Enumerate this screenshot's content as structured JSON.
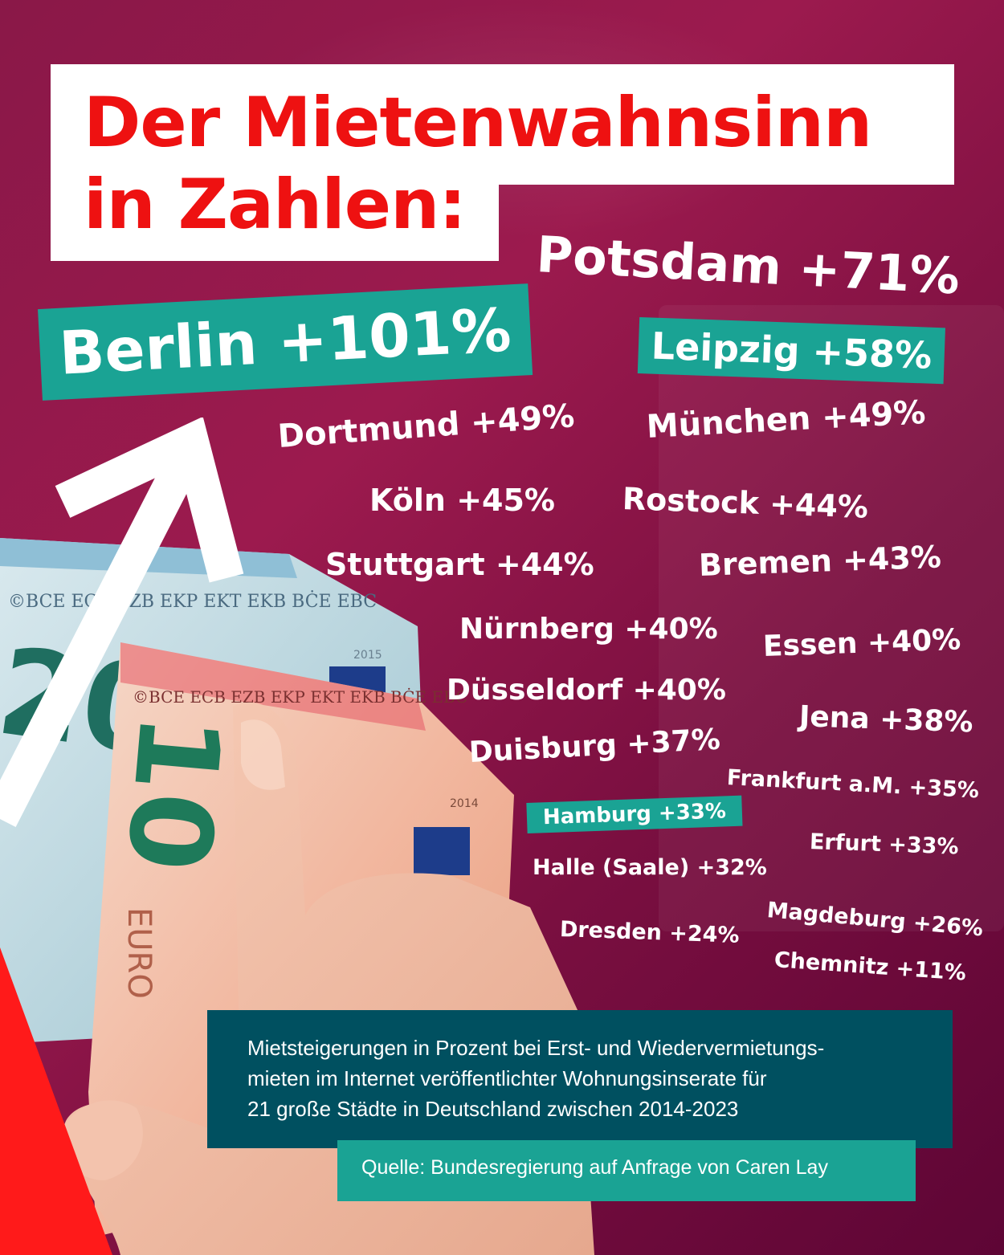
{
  "title": {
    "line1": "Der Mietenwahnsinn",
    "line2": "in Zahlen:"
  },
  "cities": [
    {
      "id": "potsdam",
      "label": "Potsdam +71%"
    },
    {
      "id": "berlin",
      "label": "Berlin +101%"
    },
    {
      "id": "leipzig",
      "label": "Leipzig +58%"
    },
    {
      "id": "dortmund",
      "label": "Dortmund +49%"
    },
    {
      "id": "muenchen",
      "label": "München +49%"
    },
    {
      "id": "koeln",
      "label": "Köln +45%"
    },
    {
      "id": "rostock",
      "label": "Rostock +44%"
    },
    {
      "id": "stuttgart",
      "label": "Stuttgart +44%"
    },
    {
      "id": "bremen",
      "label": "Bremen +43%"
    },
    {
      "id": "nuernberg",
      "label": "Nürnberg +40%"
    },
    {
      "id": "essen",
      "label": "Essen +40%"
    },
    {
      "id": "duesseldorf",
      "label": "Düsseldorf +40%"
    },
    {
      "id": "jena",
      "label": "Jena +38%"
    },
    {
      "id": "duisburg",
      "label": "Duisburg +37%"
    },
    {
      "id": "frankfurt",
      "label": "Frankfurt a.M. +35%"
    },
    {
      "id": "hamburg",
      "label": "Hamburg +33%"
    },
    {
      "id": "erfurt",
      "label": "Erfurt +33%"
    },
    {
      "id": "halle",
      "label": "Halle (Saale) +32%"
    },
    {
      "id": "magdeburg",
      "label": "Magdeburg +26%"
    },
    {
      "id": "dresden",
      "label": "Dresden +24%"
    },
    {
      "id": "chemnitz",
      "label": "Chemnitz +11%"
    }
  ],
  "note": {
    "line1": "Mietsteigerungen in Prozent bei Erst- und Wiedervermietungs-",
    "line2": "mieten im Internet veröffentlichter Wohnungsinserate für",
    "line3": "21 große Städte in Deutschland zwischen 2014-2023"
  },
  "source": "Quelle: Bundesregierung auf Anfrage von Caren Lay",
  "banknotes": {
    "note20_value": "20",
    "note10_value": "10",
    "euro_text": "EURO",
    "serial_text": "©BCE ECB EZB EKP EKT EKB BĊE EBC",
    "year_2015": "2015",
    "year_2014": "2014"
  },
  "colors": {
    "background": "#8a1848",
    "title_red": "#ee1111",
    "highlight_teal": "#1aa394",
    "note_box": "#005060",
    "accent_red": "#ff1a1a"
  }
}
